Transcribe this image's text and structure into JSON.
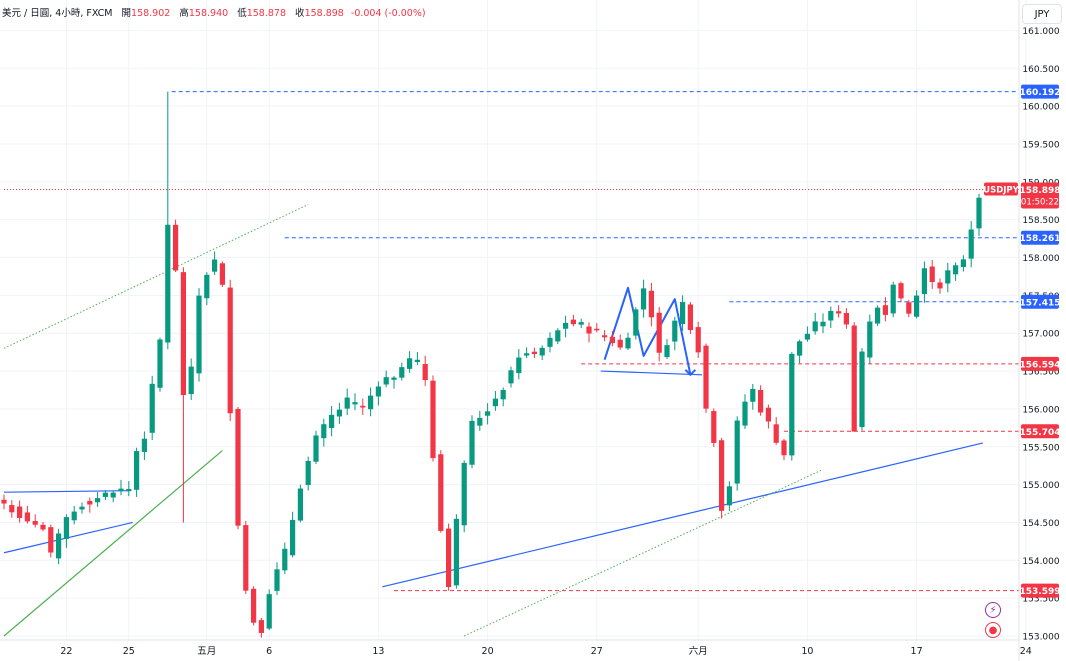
{
  "header": {
    "symbol": "美元 / 日圓, 4小時, FXCM",
    "open_label": "開",
    "open": "158.902",
    "high_label": "高",
    "high": "158.940",
    "low_label": "低",
    "low": "158.878",
    "close_label": "收",
    "close": "158.898",
    "change": "-0.004 (-0.00%)"
  },
  "currency_button": "JPY",
  "price_label": {
    "symbol": "USDJPY",
    "price": "158.898",
    "countdown": "01:50:22",
    "color": "#f23645"
  },
  "icons": [
    "lightning-icon",
    "record-icon"
  ],
  "colors": {
    "up": "#089981",
    "down": "#f23645",
    "trend": "#2962ff",
    "green_line": "#4caf50",
    "grid": "#f0f3fa"
  },
  "chart_data": {
    "type": "candlestick",
    "ylim": [
      153.0,
      161.0
    ],
    "y_ticks": [
      "153.000",
      "153.500",
      "154.000",
      "154.500",
      "155.000",
      "155.500",
      "156.000",
      "156.500",
      "157.000",
      "157.500",
      "158.000",
      "158.500",
      "159.000",
      "159.500",
      "160.000",
      "160.500",
      "161.000"
    ],
    "x_ticks": [
      {
        "label": "22",
        "i": 8
      },
      {
        "label": "25",
        "i": 16
      },
      {
        "label": "五月",
        "i": 26
      },
      {
        "label": "6",
        "i": 34
      },
      {
        "label": "13",
        "i": 48
      },
      {
        "label": "20",
        "i": 62
      },
      {
        "label": "27",
        "i": 76
      },
      {
        "label": "六月",
        "i": 89
      },
      {
        "label": "10",
        "i": 103
      },
      {
        "label": "17",
        "i": 117
      },
      {
        "label": "24",
        "i": 131
      }
    ],
    "anchors": [
      [
        0,
        154.75
      ],
      [
        5,
        154.4
      ],
      [
        6,
        154.05
      ],
      [
        8,
        154.55
      ],
      [
        10,
        154.75
      ],
      [
        14,
        154.9
      ],
      [
        16,
        154.95
      ],
      [
        17,
        155.45
      ],
      [
        18,
        155.65
      ],
      [
        20,
        156.9
      ],
      [
        21,
        158.45
      ],
      [
        22,
        157.8
      ],
      [
        23,
        156.2
      ],
      [
        24,
        156.5
      ],
      [
        25,
        157.5
      ],
      [
        26,
        157.8
      ],
      [
        27,
        157.95
      ],
      [
        28,
        157.6
      ],
      [
        29,
        156.0
      ],
      [
        30,
        154.5
      ],
      [
        31,
        153.6
      ],
      [
        32,
        153.2
      ],
      [
        33,
        153.1
      ],
      [
        34,
        153.6
      ],
      [
        36,
        154.1
      ],
      [
        38,
        155.0
      ],
      [
        40,
        155.6
      ],
      [
        42,
        155.9
      ],
      [
        44,
        156.1
      ],
      [
        46,
        156.0
      ],
      [
        48,
        156.35
      ],
      [
        50,
        156.45
      ],
      [
        52,
        156.65
      ],
      [
        53,
        156.6
      ],
      [
        54,
        156.4
      ],
      [
        55,
        155.4
      ],
      [
        56,
        154.4
      ],
      [
        57,
        153.7
      ],
      [
        58,
        154.5
      ],
      [
        59,
        155.3
      ],
      [
        60,
        155.8
      ],
      [
        62,
        156.0
      ],
      [
        64,
        156.3
      ],
      [
        66,
        156.7
      ],
      [
        68,
        156.7
      ],
      [
        70,
        156.9
      ],
      [
        72,
        157.15
      ],
      [
        74,
        157.1
      ],
      [
        76,
        157.0
      ],
      [
        78,
        156.9
      ],
      [
        79,
        156.8
      ],
      [
        80,
        157.0
      ],
      [
        81,
        157.3
      ],
      [
        82,
        157.6
      ],
      [
        83,
        157.25
      ],
      [
        84,
        156.7
      ],
      [
        85,
        156.9
      ],
      [
        86,
        157.15
      ],
      [
        87,
        157.4
      ],
      [
        88,
        157.1
      ],
      [
        89,
        156.8
      ],
      [
        90,
        156.0
      ],
      [
        91,
        155.6
      ],
      [
        92,
        154.7
      ],
      [
        93,
        155.0
      ],
      [
        94,
        155.8
      ],
      [
        95,
        156.1
      ],
      [
        96,
        156.25
      ],
      [
        97,
        156.0
      ],
      [
        98,
        155.8
      ],
      [
        99,
        155.6
      ],
      [
        100,
        155.4
      ],
      [
        101,
        156.7
      ],
      [
        102,
        156.9
      ],
      [
        103,
        157.0
      ],
      [
        104,
        157.1
      ],
      [
        106,
        157.25
      ],
      [
        107,
        157.3
      ],
      [
        108,
        157.1
      ],
      [
        109,
        155.75
      ],
      [
        110,
        156.7
      ],
      [
        111,
        157.1
      ],
      [
        112,
        157.35
      ],
      [
        113,
        157.3
      ],
      [
        114,
        157.7
      ],
      [
        115,
        157.4
      ],
      [
        116,
        157.25
      ],
      [
        117,
        157.5
      ],
      [
        118,
        157.85
      ],
      [
        119,
        157.7
      ],
      [
        120,
        157.65
      ],
      [
        121,
        157.8
      ],
      [
        122,
        157.85
      ],
      [
        123,
        158.0
      ],
      [
        124,
        158.4
      ],
      [
        125,
        158.85
      ],
      [
        126,
        158.9
      ]
    ],
    "price_lines": [
      {
        "price": "160.192",
        "color": "#2962ff",
        "style": "dashed",
        "from_i": 21.5
      },
      {
        "price": "158.261",
        "color": "#2962ff",
        "style": "dashed",
        "from_i": 36
      },
      {
        "price": "157.415",
        "color": "#2962ff",
        "style": "dashed",
        "from_i": 93
      },
      {
        "price": "156.594",
        "color": "#f23645",
        "style": "dashed",
        "from_i": 74
      },
      {
        "price": "155.704",
        "color": "#f23645",
        "style": "dashed",
        "from_i": 100
      },
      {
        "price": "153.599",
        "color": "#f23645",
        "style": "dashed",
        "from_i": 50
      },
      {
        "price": "158.898",
        "color": "#f23645",
        "style": "dotted",
        "from_i": 0
      }
    ],
    "trendlines": [
      {
        "name": "support-trendline",
        "color": "#2962ff",
        "style": "solid",
        "p1": [
          48.5,
          153.65
        ],
        "p2": [
          125.5,
          155.55
        ]
      },
      {
        "name": "left-trendline-low",
        "color": "#2962ff",
        "style": "solid",
        "p1": [
          0,
          154.1
        ],
        "p2": [
          16.5,
          154.5
        ]
      },
      {
        "name": "left-trendline-top",
        "color": "#2962ff",
        "style": "solid",
        "p1": [
          0,
          154.9
        ],
        "p2": [
          16,
          154.92
        ]
      },
      {
        "name": "neckline",
        "color": "#2962ff",
        "style": "solid",
        "p1": [
          76.5,
          156.5
        ],
        "p2": [
          89.5,
          156.45
        ]
      },
      {
        "name": "green-trendline-lower",
        "color": "#4caf50",
        "style": "solid",
        "p1": [
          0,
          153.0
        ],
        "p2": [
          28,
          155.45
        ]
      },
      {
        "name": "green-channel-upper",
        "color": "#4caf50",
        "style": "dotted",
        "p1": [
          0,
          156.8
        ],
        "p2": [
          39,
          158.7
        ]
      },
      {
        "name": "green-channel-lower",
        "color": "#4caf50",
        "style": "dotted",
        "p1": [
          59,
          153.0
        ],
        "p2": [
          105,
          155.2
        ]
      }
    ],
    "pattern": {
      "name": "double-top-pattern",
      "color": "#2962ff",
      "points": [
        [
          77,
          156.65
        ],
        [
          80,
          157.6
        ],
        [
          82,
          156.7
        ],
        [
          86,
          157.45
        ],
        [
          88,
          156.45
        ]
      ]
    }
  }
}
